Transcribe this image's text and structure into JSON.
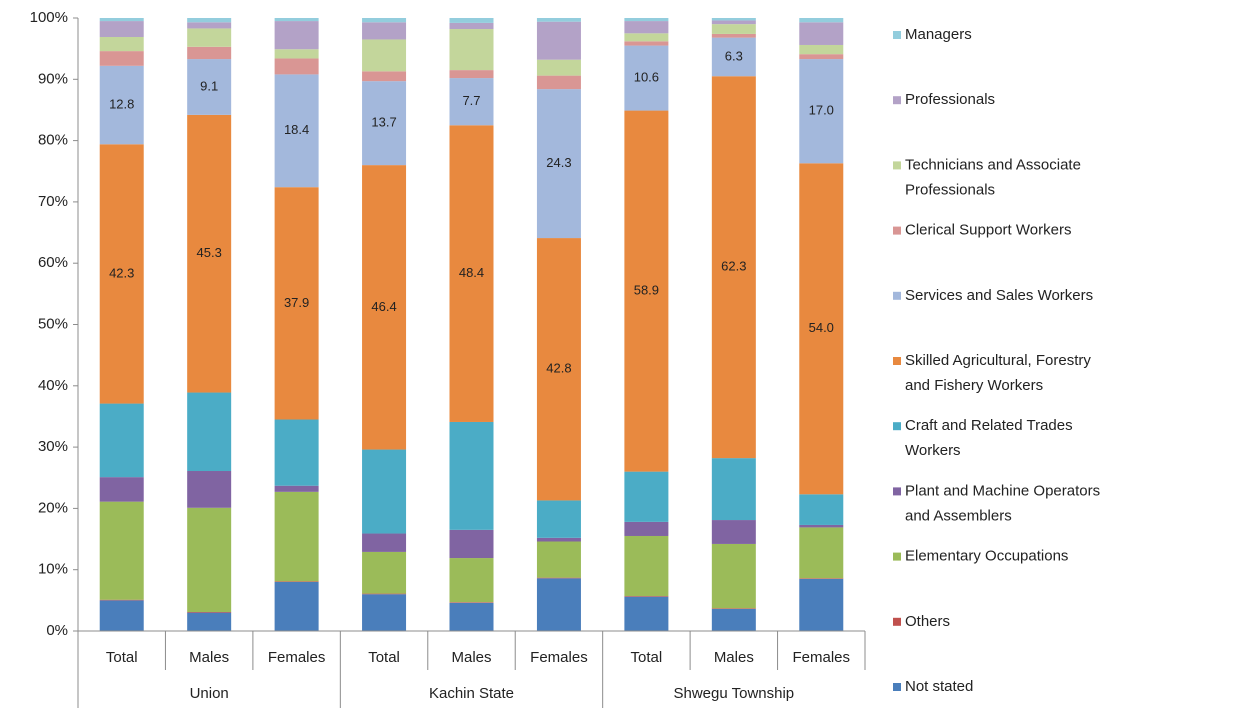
{
  "chart_data": {
    "type": "stacked_bar",
    "groups": [
      "Union",
      "Kachin State",
      "Shwegu Township"
    ],
    "categories": [
      "Total",
      "Males",
      "Females",
      "Total",
      "Males",
      "Females",
      "Total",
      "Males",
      "Females"
    ],
    "ylim": [
      0,
      100
    ],
    "yticks": [
      {
        "value": 0,
        "label": "0%"
      },
      {
        "value": 10,
        "label": "10%"
      },
      {
        "value": 20,
        "label": "20%"
      },
      {
        "value": 30,
        "label": "30%"
      },
      {
        "value": 40,
        "label": "40%"
      },
      {
        "value": 50,
        "label": "50%"
      },
      {
        "value": 60,
        "label": "60%"
      },
      {
        "value": 70,
        "label": "70%"
      },
      {
        "value": 80,
        "label": "80%"
      },
      {
        "value": 90,
        "label": "90%"
      },
      {
        "value": 100,
        "label": "100%"
      }
    ],
    "grid": false,
    "legend": "right",
    "series": [
      {
        "name": "Not stated",
        "color": "#4a7ebb",
        "values": [
          5.0,
          3.0,
          8.0,
          6.0,
          4.6,
          8.6,
          5.6,
          3.6,
          8.5
        ]
      },
      {
        "name": "Others",
        "color": "#c0504d",
        "values": [
          0.1,
          0.1,
          0.1,
          0.1,
          0.1,
          0.1,
          0.1,
          0.1,
          0.1
        ]
      },
      {
        "name": "Elementary Occupations",
        "color": "#9bbb59",
        "values": [
          16.0,
          17.0,
          14.6,
          6.8,
          7.2,
          5.9,
          9.8,
          10.5,
          8.3
        ]
      },
      {
        "name": "Plant and Machine Operators and Assemblers",
        "color": "#8064a2",
        "values": [
          4.0,
          6.0,
          1.0,
          3.0,
          4.6,
          0.6,
          2.3,
          3.9,
          0.4
        ]
      },
      {
        "name": "Craft and Related Trades Workers",
        "color": "#4bacc6",
        "values": [
          12.0,
          12.8,
          10.8,
          13.7,
          17.6,
          6.1,
          8.2,
          10.1,
          5.0
        ]
      },
      {
        "name": "Skilled Agricultural, Forestry and Fishery Workers",
        "color": "#e8893f",
        "values": [
          42.3,
          45.3,
          37.9,
          46.4,
          48.4,
          42.8,
          58.9,
          62.3,
          54.0
        ],
        "value_labels": [
          "42.3",
          "45.3",
          "37.9",
          "46.4",
          "48.4",
          "42.8",
          "58.9",
          "62.3",
          "54.0"
        ]
      },
      {
        "name": "Services and Sales Workers",
        "color": "#a3b8dc",
        "values": [
          12.8,
          9.1,
          18.4,
          13.7,
          7.7,
          24.3,
          10.6,
          6.3,
          17.0
        ],
        "value_labels": [
          "12.8",
          "9.1",
          "18.4",
          "13.7",
          "7.7",
          "24.3",
          "10.6",
          "6.3",
          "17.0"
        ]
      },
      {
        "name": "Clerical Support Workers",
        "color": "#d99694",
        "values": [
          2.4,
          2.0,
          2.6,
          1.6,
          1.3,
          2.2,
          0.7,
          0.6,
          0.8
        ]
      },
      {
        "name": "Technicians and Associate Professionals",
        "color": "#c3d69b",
        "values": [
          2.3,
          3.0,
          1.5,
          5.2,
          6.7,
          2.6,
          1.3,
          1.6,
          1.5
        ]
      },
      {
        "name": "Professionals",
        "color": "#b3a2c7",
        "values": [
          2.6,
          1.0,
          4.6,
          2.8,
          1.0,
          6.2,
          2.0,
          0.6,
          3.7
        ]
      },
      {
        "name": "Managers",
        "color": "#93cddd",
        "values": [
          0.5,
          0.7,
          0.5,
          0.7,
          0.8,
          0.6,
          0.5,
          0.4,
          0.7
        ]
      }
    ]
  }
}
